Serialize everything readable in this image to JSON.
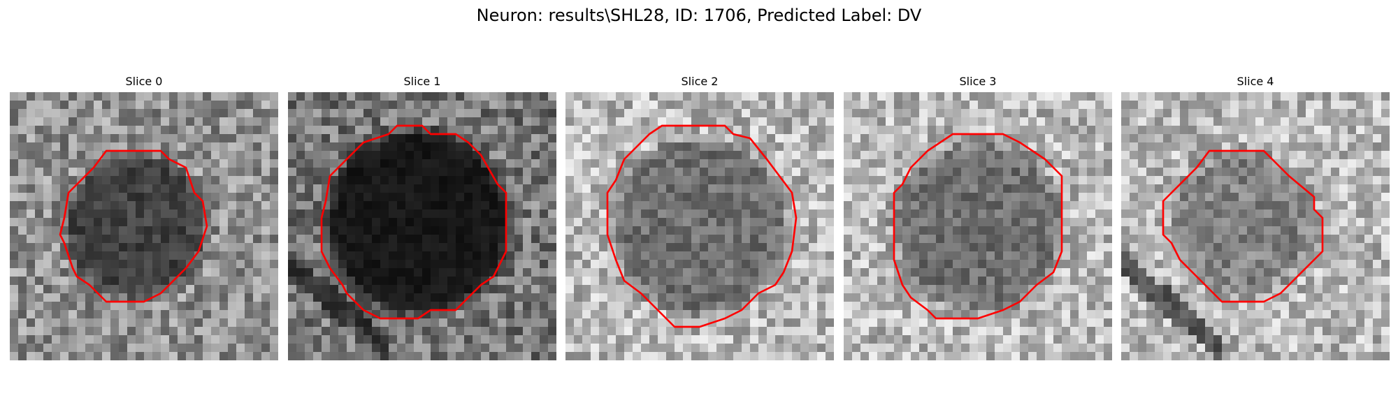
{
  "figure": {
    "title": "Neuron: results\\SHL28, ID: 1706, Predicted Label: DV",
    "contour_color": "#ff0000"
  },
  "panels": [
    {
      "title": "Slice 0",
      "tone": "mid",
      "blob_darkness": 0.55
    },
    {
      "title": "Slice 1",
      "tone": "dark",
      "blob_darkness": 0.8
    },
    {
      "title": "Slice 2",
      "tone": "light",
      "blob_darkness": 0.4
    },
    {
      "title": "Slice 3",
      "tone": "light",
      "blob_darkness": 0.4
    },
    {
      "title": "Slice 4",
      "tone": "light",
      "blob_darkness": 0.3
    }
  ]
}
